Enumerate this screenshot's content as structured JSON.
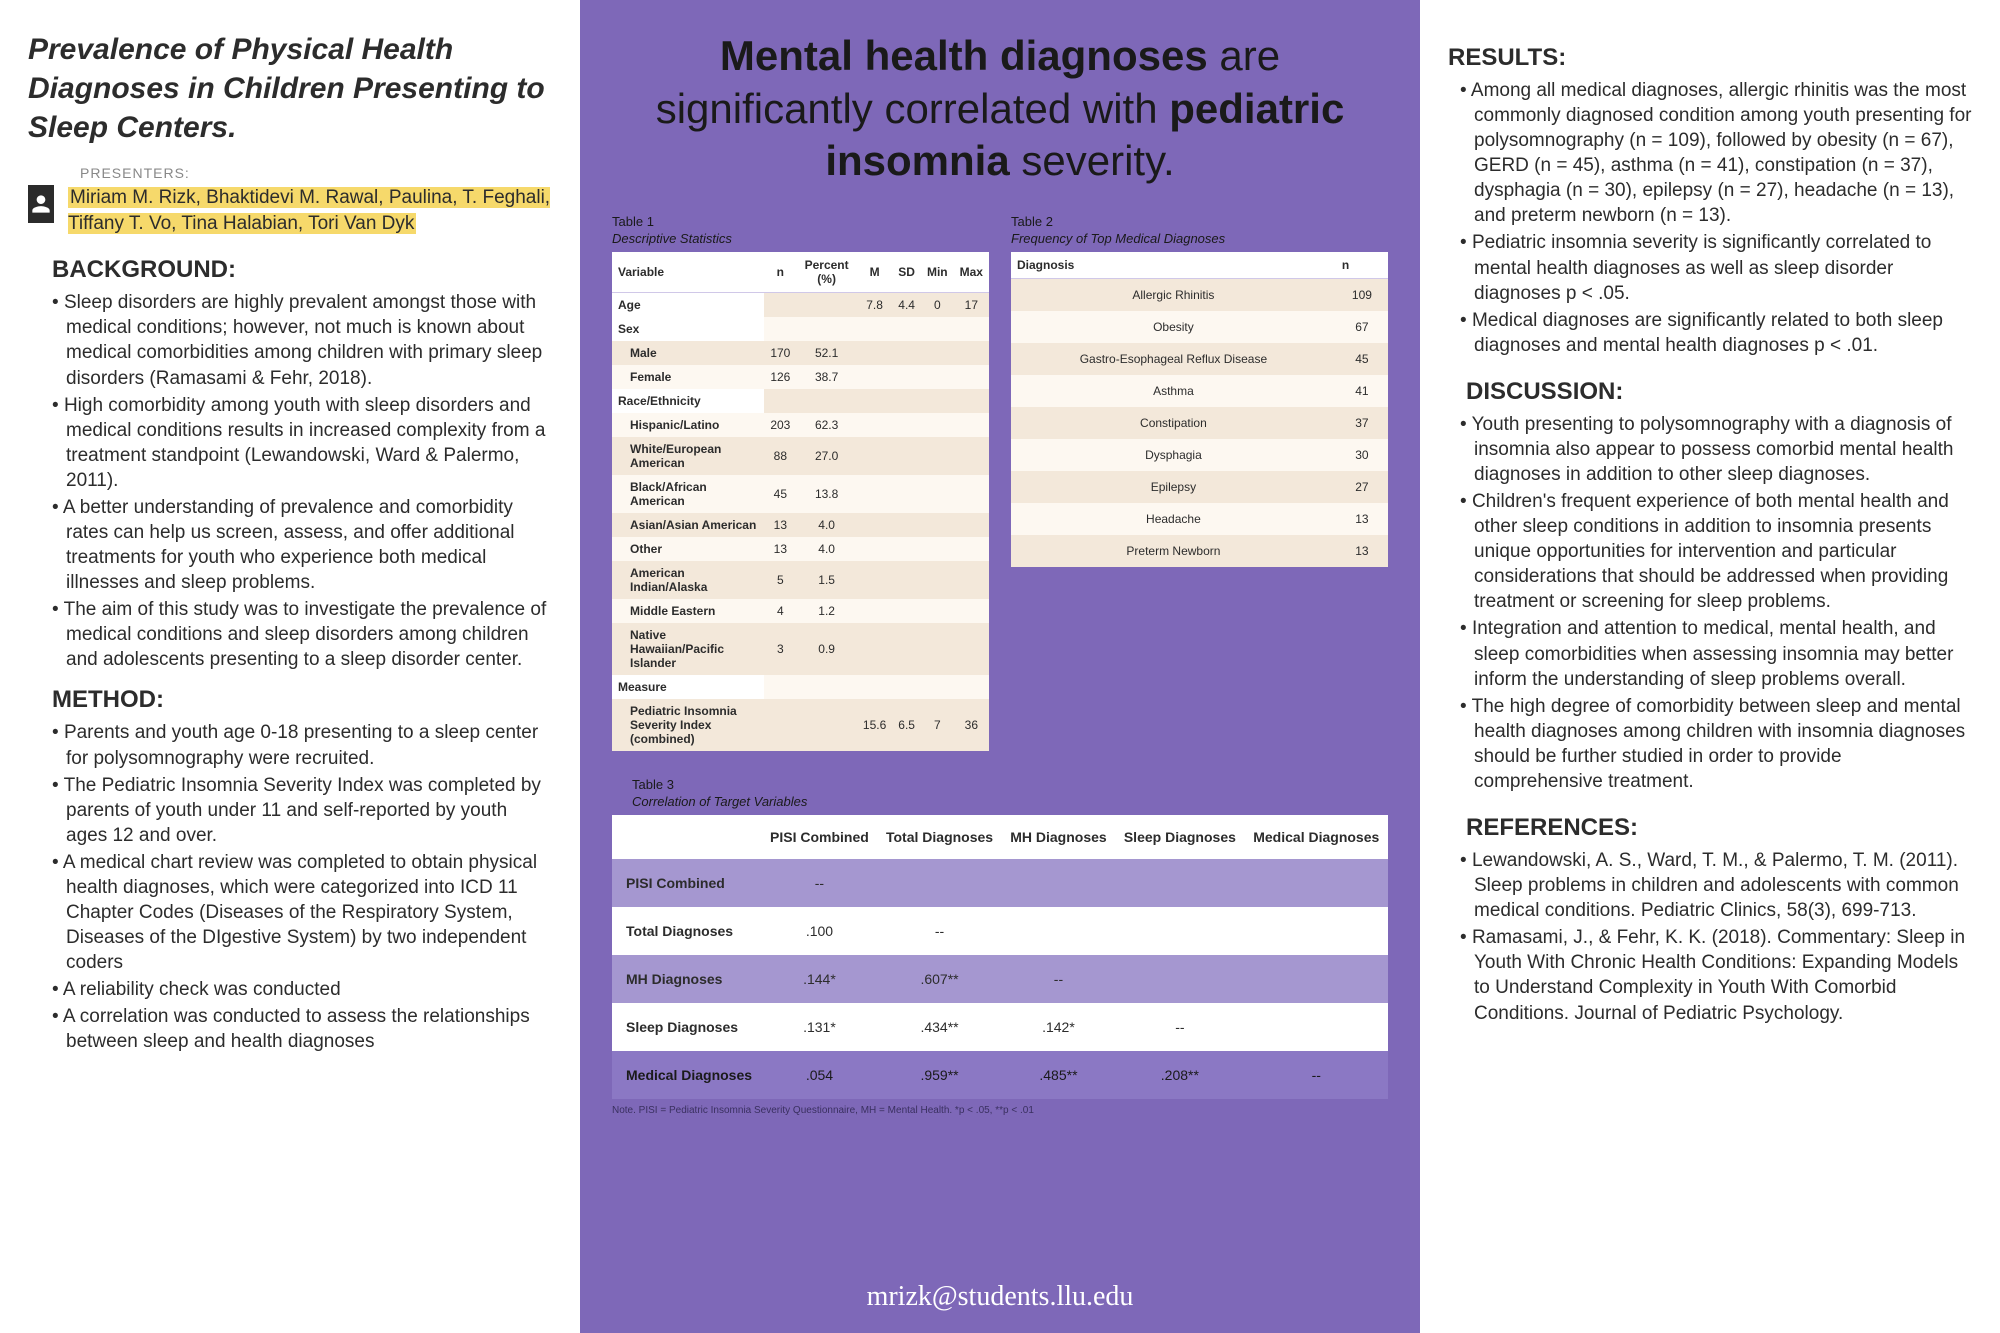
{
  "title": "Prevalence of Physical Health Diagnoses in Children Presenting to Sleep Centers.",
  "presenters_label": "PRESENTERS:",
  "presenters": "Miriam  M. Rizk, Bhaktidevi M. Rawal, Paulina, T. Feghali, Tiffany T. Vo, Tina Halabian,  Tori Van Dyk",
  "background_h": "BACKGROUND:",
  "background": [
    "Sleep disorders are highly prevalent amongst those with medical conditions; however, not much is known about medical comorbidities among children with primary sleep disorders (Ramasami & Fehr, 2018).",
    "High comorbidity among youth with sleep disorders and medical conditions results in increased complexity from a treatment standpoint (Lewandowski, Ward & Palermo, 2011).",
    "A better understanding of prevalence and comorbidity rates can help us screen, assess, and offer additional treatments for youth who experience both medical illnesses and sleep problems.",
    "The aim of this study was to investigate the prevalence of medical conditions and sleep disorders among children and adolescents presenting to a sleep disorder center."
  ],
  "method_h": "METHOD:",
  "method": [
    "Parents and youth age 0-18 presenting to a sleep center for polysomnography were recruited.",
    "The Pediatric Insomnia Severity Index was completed by parents of youth under 11 and self-reported by youth ages 12 and over.",
    "A medical chart review was completed to obtain physical health diagnoses, which were categorized into ICD 11 Chapter Codes (Diseases of the Respiratory System, Diseases of the DIgestive System) by two independent coders",
    "A reliability check was conducted",
    "A correlation was conducted to assess the relationships between sleep and health diagnoses"
  ],
  "headline_pre": "Mental health diagnoses",
  "headline_mid": " are significantly correlated with ",
  "headline_bold2": "pediatric insomnia",
  "headline_post": " severity.",
  "table1": {
    "label": "Table 1",
    "caption": "Descriptive Statistics",
    "headers": [
      "Variable",
      "n",
      "Percent (%)",
      "M",
      "SD",
      "Min",
      "Max"
    ],
    "rows": [
      {
        "type": "hdr",
        "cells": [
          "Age",
          "",
          "",
          "7.8",
          "4.4",
          "0",
          "17"
        ]
      },
      {
        "type": "hdr",
        "cells": [
          "Sex",
          "",
          "",
          "",
          "",
          "",
          ""
        ]
      },
      {
        "type": "sub",
        "cells": [
          "Male",
          "170",
          "52.1",
          "",
          "",
          "",
          ""
        ]
      },
      {
        "type": "sub",
        "cells": [
          "Female",
          "126",
          "38.7",
          "",
          "",
          "",
          ""
        ]
      },
      {
        "type": "hdr",
        "cells": [
          "Race/Ethnicity",
          "",
          "",
          "",
          "",
          "",
          ""
        ]
      },
      {
        "type": "sub",
        "cells": [
          "Hispanic/Latino",
          "203",
          "62.3",
          "",
          "",
          "",
          ""
        ]
      },
      {
        "type": "sub",
        "cells": [
          "White/European American",
          "88",
          "27.0",
          "",
          "",
          "",
          ""
        ]
      },
      {
        "type": "sub",
        "cells": [
          "Black/African American",
          "45",
          "13.8",
          "",
          "",
          "",
          ""
        ]
      },
      {
        "type": "sub",
        "cells": [
          "Asian/Asian American",
          "13",
          "4.0",
          "",
          "",
          "",
          ""
        ]
      },
      {
        "type": "sub",
        "cells": [
          "Other",
          "13",
          "4.0",
          "",
          "",
          "",
          ""
        ]
      },
      {
        "type": "sub",
        "cells": [
          "American Indian/Alaska",
          "5",
          "1.5",
          "",
          "",
          "",
          ""
        ]
      },
      {
        "type": "sub",
        "cells": [
          "Middle Eastern",
          "4",
          "1.2",
          "",
          "",
          "",
          ""
        ]
      },
      {
        "type": "sub",
        "cells": [
          "Native Hawaiian/Pacific Islander",
          "3",
          "0.9",
          "",
          "",
          "",
          ""
        ]
      },
      {
        "type": "hdr",
        "cells": [
          "Measure",
          "",
          "",
          "",
          "",
          "",
          ""
        ]
      },
      {
        "type": "sub",
        "cells": [
          "Pediatric Insomnia Severity Index (combined)",
          "",
          "",
          "15.6",
          "6.5",
          "7",
          "36"
        ]
      }
    ]
  },
  "table2": {
    "label": "Table 2",
    "caption": "Frequency of Top Medical Diagnoses",
    "headers": [
      "Diagnosis",
      "n"
    ],
    "rows": [
      [
        "Allergic Rhinitis",
        "109"
      ],
      [
        "Obesity",
        "67"
      ],
      [
        "Gastro-Esophageal Reflux Disease",
        "45"
      ],
      [
        "Asthma",
        "41"
      ],
      [
        "Constipation",
        "37"
      ],
      [
        "Dysphagia",
        "30"
      ],
      [
        "Epilepsy",
        "27"
      ],
      [
        "Headache",
        "13"
      ],
      [
        "Preterm Newborn",
        "13"
      ]
    ]
  },
  "table3": {
    "label": "Table 3",
    "caption": "Correlation of Target Variables",
    "headers": [
      "",
      "PISI Combined",
      "Total Diagnoses",
      "MH Diagnoses",
      "Sleep Diagnoses",
      "Medical Diagnoses"
    ],
    "rows": [
      {
        "cls": "dark",
        "cells": [
          "PISI Combined",
          "--",
          "",
          "",
          "",
          ""
        ]
      },
      {
        "cls": "light",
        "cells": [
          "Total Diagnoses",
          ".100",
          "--",
          "",
          "",
          ""
        ]
      },
      {
        "cls": "dark",
        "cells": [
          "MH Diagnoses",
          ".144*",
          ".607**",
          "--",
          "",
          ""
        ]
      },
      {
        "cls": "light",
        "cells": [
          "Sleep Diagnoses",
          ".131*",
          ".434**",
          ".142*",
          "--",
          ""
        ]
      },
      {
        "cls": "darker",
        "cells": [
          "Medical Diagnoses",
          ".054",
          ".959**",
          ".485**",
          ".208**",
          "--"
        ]
      }
    ],
    "footnote": "Note. PISI = Pediatric Insomnia Severity Questionnaire, MH = Mental Health. *p < .05, **p < .01"
  },
  "email": "mrizk@students.llu.edu",
  "results_h": "RESULTS:",
  "results": [
    "Among all medical diagnoses, allergic rhinitis was the most commonly diagnosed condition among youth presenting for polysomnography  (n = 109), followed by obesity (n = 67), GERD (n = 45), asthma (n = 41), constipation (n = 37), dysphagia (n = 30), epilepsy (n = 27), headache (n = 13), and preterm newborn (n = 13).",
    "Pediatric insomnia severity is significantly correlated to mental health diagnoses as well as sleep disorder diagnoses p < .05.",
    "Medical diagnoses are significantly related to both sleep diagnoses and mental health diagnoses p < .01."
  ],
  "discussion_h": "DISCUSSION:",
  "discussion": [
    "Youth presenting to polysomnography with a diagnosis of insomnia also appear to possess comorbid mental health diagnoses in addition to other sleep diagnoses.",
    "Children's frequent experience of both mental health and other sleep conditions in addition to insomnia presents unique opportunities for intervention and particular considerations that should be addressed when providing treatment or screening for sleep problems.",
    "Integration and attention to medical, mental health, and sleep comorbidities when assessing insomnia may better inform the understanding of sleep problems overall.",
    "The high degree of comorbidity between sleep and mental health diagnoses among children with insomnia diagnoses should be further studied in order to provide comprehensive treatment."
  ],
  "references_h": "REFERENCES:",
  "references": [
    "Lewandowski, A. S., Ward, T. M., & Palermo, T. M. (2011). Sleep problems in children and adolescents with common medical conditions. Pediatric Clinics, 58(3), 699-713.",
    "Ramasami, J., & Fehr, K. K. (2018). Commentary: Sleep in Youth With Chronic Health Conditions: Expanding Models to Understand Complexity in Youth With Comorbid Conditions. Journal of Pediatric Psychology."
  ]
}
